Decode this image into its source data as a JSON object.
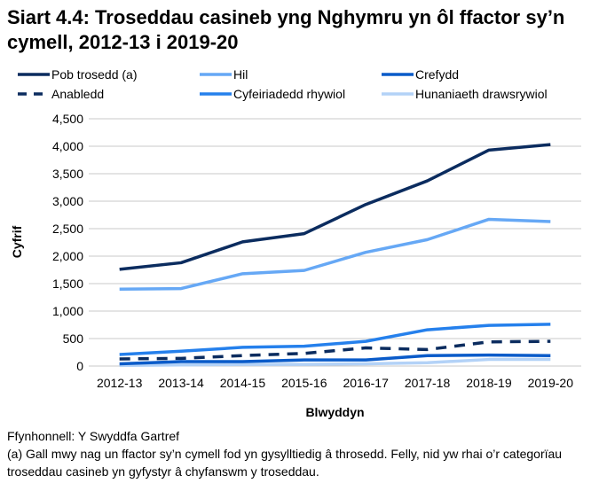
{
  "title": "Siart 4.4: Troseddau casineb yng Nghymru yn ôl ffactor sy’n cymell, 2012-13 i 2019-20",
  "chart_data": {
    "type": "line",
    "title": "Siart 4.4: Troseddau casineb yng Nghymru yn ôl ffactor sy’n cymell, 2012-13 i 2019-20",
    "xlabel": "Blwyddyn",
    "ylabel": "Cyfrif",
    "ylim": [
      0,
      4500
    ],
    "yticks": [
      0,
      500,
      1000,
      1500,
      2000,
      2500,
      3000,
      3500,
      4000,
      4500
    ],
    "ytick_labels": [
      "0",
      "500",
      "1,000",
      "1,500",
      "2,000",
      "2,500",
      "3,000",
      "3,500",
      "4,000",
      "4,500"
    ],
    "grid": "horizontal",
    "legend_position": "top",
    "categories": [
      "2012-13",
      "2013-14",
      "2014-15",
      "2015-16",
      "2016-17",
      "2017-18",
      "2018-19",
      "2019-20"
    ],
    "series": [
      {
        "name": "Pob trosedd (a)",
        "color": "#0b2c5f",
        "dashed": false,
        "values": [
          1760,
          1880,
          2260,
          2410,
          2940,
          3370,
          3930,
          4030
        ]
      },
      {
        "name": "Hil",
        "color": "#66a8f5",
        "dashed": false,
        "values": [
          1400,
          1410,
          1680,
          1740,
          2070,
          2300,
          2670,
          2630
        ]
      },
      {
        "name": "Crefydd",
        "color": "#0a5bc9",
        "dashed": false,
        "values": [
          40,
          80,
          80,
          110,
          110,
          190,
          200,
          190
        ]
      },
      {
        "name": "Anabledd",
        "color": "#0b2c5f",
        "dashed": true,
        "values": [
          130,
          140,
          190,
          230,
          330,
          300,
          440,
          450
        ]
      },
      {
        "name": "Cyfeiriadedd rhywiol",
        "color": "#2580ec",
        "dashed": false,
        "values": [
          210,
          270,
          340,
          360,
          450,
          660,
          740,
          760
        ]
      },
      {
        "name": "Hunaniaeth drawsrywiol",
        "color": "#b3d2f7",
        "dashed": false,
        "values": [
          10,
          20,
          30,
          30,
          40,
          60,
          120,
          120
        ]
      }
    ]
  },
  "footer": {
    "source": "Ffynhonnell: Y Swyddfa Gartref",
    "note": "(a) Gall mwy nag un ffactor sy’n cymell fod yn gysylltiedig â throsedd. Felly, nid yw rhai o’r categorïau troseddau casineb yn gyfystyr â chyfanswm y troseddau."
  }
}
